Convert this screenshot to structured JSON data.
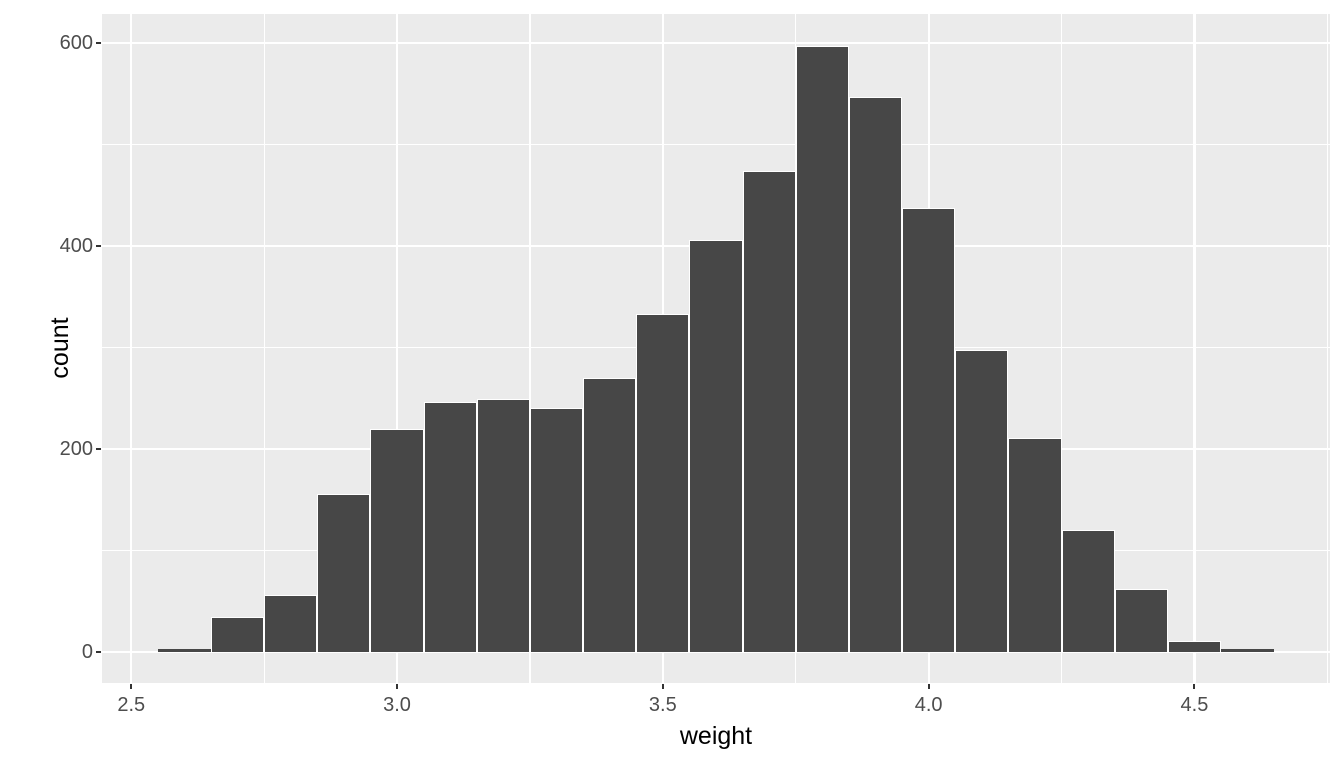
{
  "figure": {
    "background": "#FFFFFF"
  },
  "chart_data": {
    "type": "bar",
    "subtype": "histogram",
    "title": "",
    "xlabel": "weight",
    "ylabel": "count",
    "bin_width": 0.1,
    "bin_centers": [
      2.6,
      2.7,
      2.8,
      2.9,
      3.0,
      3.1,
      3.2,
      3.3,
      3.4,
      3.5,
      3.6,
      3.7,
      3.8,
      3.9,
      4.0,
      4.1,
      4.2,
      4.3,
      4.4,
      4.5,
      4.6
    ],
    "counts": [
      3,
      35,
      56,
      156,
      220,
      246,
      249,
      240,
      270,
      333,
      406,
      474,
      597,
      547,
      437,
      298,
      211,
      120,
      62,
      11,
      3
    ],
    "x_ticks": [
      2.5,
      3.0,
      3.5,
      4.0,
      4.5
    ],
    "x_tick_labels": [
      "2.5",
      "3.0",
      "3.5",
      "4.0",
      "4.5"
    ],
    "x_minor_ticks": [
      2.75,
      3.25,
      3.75,
      4.25,
      4.75
    ],
    "y_ticks": [
      0,
      200,
      400,
      600
    ],
    "y_tick_labels": [
      "0",
      "200",
      "400",
      "600"
    ],
    "y_minor_ticks": [
      100,
      300,
      500
    ],
    "x_range": [
      2.445,
      4.755
    ],
    "y_range": [
      -30.5,
      628.5
    ],
    "grid": true,
    "legend": false,
    "style": {
      "bar_fill": "#474747",
      "bar_stroke": "#FFFFFF",
      "panel_bg": "#EBEBEB",
      "grid_major_color": "#FFFFFF",
      "grid_minor_color": "#FFFFFF",
      "tick_label_color": "#4D4D4D",
      "axis_title_color": "#000000",
      "tick_mark_color": "#333333"
    }
  }
}
